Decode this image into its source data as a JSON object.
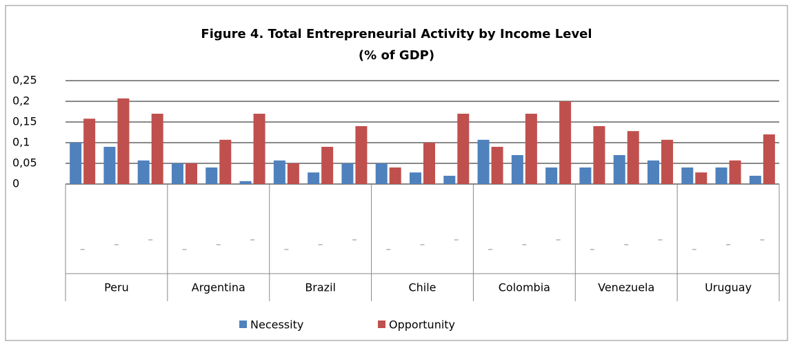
{
  "chart_data": {
    "type": "bar",
    "title": "Figure 4. Total Entrepreneurial Activity by Income Level",
    "subtitle": "(% of GDP)",
    "groups": [
      "Peru",
      "Argentina",
      "Brazil",
      "Chile",
      "Colombia",
      "Venezuela",
      "Uruguay"
    ],
    "categories": [
      null,
      null,
      null,
      null,
      null,
      null,
      null,
      null,
      null,
      null,
      null,
      null,
      null,
      null,
      null,
      null,
      null,
      null,
      null,
      null,
      null
    ],
    "series": [
      {
        "name": "Necessity",
        "color": "#4f81bd",
        "values": [
          0.1,
          0.09,
          0.057,
          0.05,
          0.04,
          0.007,
          0.057,
          0.028,
          0.05,
          0.05,
          0.028,
          0.02,
          0.107,
          0.07,
          0.04,
          0.04,
          0.07,
          0.057,
          0.04,
          0.04,
          0.02
        ]
      },
      {
        "name": "Opportunity",
        "color": "#c0504d",
        "values": [
          0.158,
          0.207,
          0.17,
          0.05,
          0.107,
          0.17,
          0.05,
          0.09,
          0.14,
          0.04,
          0.1,
          0.17,
          0.09,
          0.17,
          0.2,
          0.14,
          0.128,
          0.107,
          0.028,
          0.057,
          0.12
        ]
      }
    ],
    "ylim": [
      0,
      0.25
    ],
    "yticks": [
      0,
      {
        "value": 0.05,
        "label": "0,05"
      },
      {
        "value": 0.1,
        "label": "0,1"
      },
      {
        "value": 0.15,
        "label": "0,15"
      },
      {
        "value": 0.2,
        "label": "0,2"
      },
      {
        "value": 0.25,
        "label": "0,25"
      }
    ],
    "grid": true,
    "legend": "bottom"
  }
}
